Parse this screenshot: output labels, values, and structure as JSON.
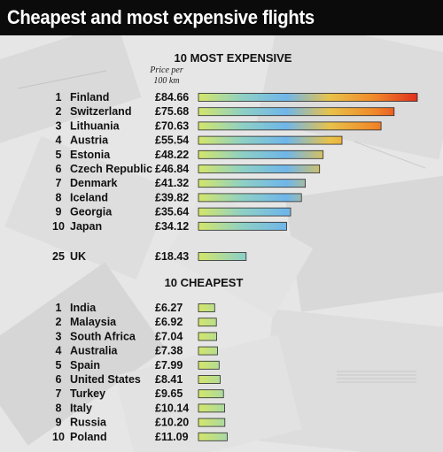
{
  "title": "Cheapest and most expensive flights",
  "chart_data": [
    {
      "type": "bar",
      "title": "10 MOST EXPENSIVE",
      "subtitle": "Price per 100 km",
      "unit": "£",
      "ranks": [
        "1",
        "2",
        "3",
        "4",
        "5",
        "6",
        "7",
        "8",
        "9",
        "10"
      ],
      "categories": [
        "Finland",
        "Switzerland",
        "Lithuania",
        "Austria",
        "Estonia",
        "Czech Republic",
        "Denmark",
        "Iceland",
        "Georgia",
        "Japan"
      ],
      "value_labels": [
        "£84.66",
        "£75.68",
        "£70.63",
        "£55.54",
        "£48.22",
        "£46.84",
        "£41.32",
        "£39.82",
        "£35.64",
        "£34.12"
      ],
      "values": [
        84.66,
        75.68,
        70.63,
        55.54,
        48.22,
        46.84,
        41.32,
        39.82,
        35.64,
        34.12
      ]
    },
    {
      "type": "bar",
      "ranks": [
        "25"
      ],
      "categories": [
        "UK"
      ],
      "value_labels": [
        "£18.43"
      ],
      "values": [
        18.43
      ]
    },
    {
      "type": "bar",
      "title": "10 CHEAPEST",
      "unit": "£",
      "ranks": [
        "1",
        "2",
        "3",
        "4",
        "5",
        "6",
        "7",
        "8",
        "9",
        "10"
      ],
      "categories": [
        "India",
        "Malaysia",
        "South Africa",
        "Australia",
        "Spain",
        "United States",
        "Turkey",
        "Italy",
        "Russia",
        "Poland"
      ],
      "value_labels": [
        "£6.27",
        "£6.92",
        "£7.04",
        "£7.38",
        "£7.99",
        "£8.41",
        "£9.65",
        "£10.14",
        "£10.20",
        "£11.09"
      ],
      "values": [
        6.27,
        6.92,
        7.04,
        7.38,
        7.99,
        8.41,
        9.65,
        10.14,
        10.2,
        11.09
      ]
    }
  ],
  "colors": {
    "gradient": [
      "#d4e66a",
      "#8fd0c4",
      "#6fb6ea",
      "#e8c24a",
      "#f08a2a",
      "#e0301e"
    ],
    "bar_edge": "#2a2a2a",
    "title_bar": "#0b0b0b"
  }
}
